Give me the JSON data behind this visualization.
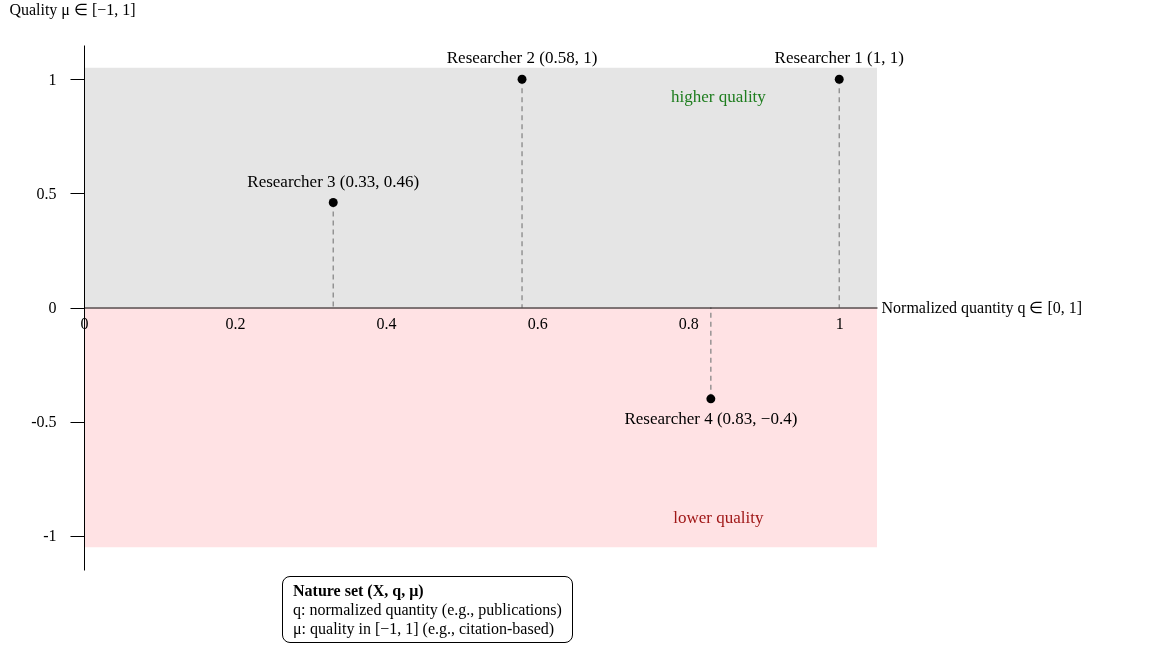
{
  "chart_data": {
    "type": "lollipop",
    "xlabel": "Normalized quantity q ∈ [0, 1]",
    "ylabel": "Quality μ ∈ [−1, 1]",
    "x": [
      1,
      0.58,
      0.33,
      0.83
    ],
    "series": [
      {
        "color": "#000000",
        "values": [
          1,
          1,
          0.46,
          -0.4
        ]
      }
    ],
    "marker": "circle",
    "line_style": "dashed",
    "xlim": [
      0,
      1.05
    ],
    "xticks": [
      0,
      0.2,
      0.4,
      0.6,
      0.8,
      1
    ],
    "ylim": [
      -1.15,
      1.15
    ],
    "yticks": [
      -1,
      -0.5,
      0,
      0.5,
      1
    ],
    "grid": false,
    "legend": false,
    "bands": [
      {
        "axis": "y",
        "from": 0,
        "to": 1.05,
        "label": "higher quality",
        "color": "#e5e5e5"
      },
      {
        "axis": "y",
        "from": -1.05,
        "to": 0,
        "label": "lower quality",
        "color": "#ffe2e4"
      }
    ],
    "annotations": [
      {
        "text": "Researcher 1 (1, 1)",
        "x": 1,
        "y": 1
      },
      {
        "text": "Researcher 2 (0.58, 1)",
        "x": 0.58,
        "y": 1
      },
      {
        "text": "Researcher 3 (0.33, 0.46)",
        "x": 0.33,
        "y": 0.46
      },
      {
        "text": "Researcher 4 (0.83, −0.4)",
        "x": 0.83,
        "y": -0.4
      },
      "Nature set (X, q, μ)",
      "q: normalized quantity (e.g., publications)",
      "μ: quality in [−1, 1] (e.g., citation-based)"
    ]
  }
}
